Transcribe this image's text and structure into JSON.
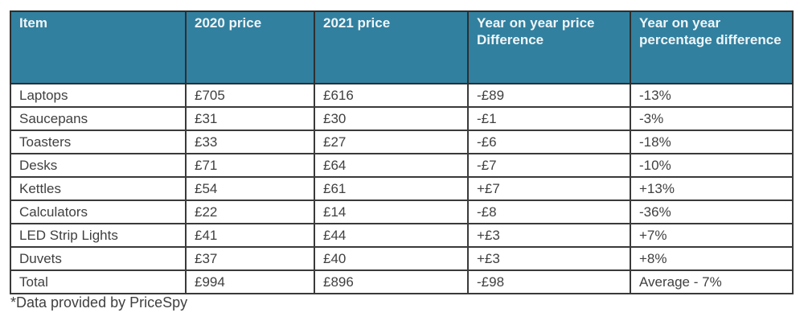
{
  "table": {
    "columns": [
      "Item",
      "2020 price",
      "2021 price",
      "Year on year price Difference",
      "Year on year percentage difference"
    ],
    "rows": [
      [
        "Laptops",
        "£705",
        "£616",
        "-£89",
        "-13%"
      ],
      [
        "Saucepans",
        "£31",
        "£30",
        "-£1",
        "-3%"
      ],
      [
        "Toasters",
        "£33",
        "£27",
        "-£6",
        "-18%"
      ],
      [
        "Desks",
        "£71",
        "£64",
        "-£7",
        "-10%"
      ],
      [
        "Kettles",
        "£54",
        "£61",
        "+£7",
        "+13%"
      ],
      [
        "Calculators",
        "£22",
        "£14",
        "-£8",
        "-36%"
      ],
      [
        "LED Strip Lights",
        "£41",
        "£44",
        "+£3",
        "+7%"
      ],
      [
        "Duvets",
        "£37",
        "£40",
        "+£3",
        "+8%"
      ],
      [
        "Total",
        "£994",
        "£896",
        "-£98",
        "Average - 7%"
      ]
    ]
  },
  "footnote": "*Data provided by PriceSpy",
  "colors": {
    "header_bg": "#31809F",
    "header_text": "#EFF5F8",
    "body_text": "#404040",
    "border": "#3A3A3A"
  }
}
